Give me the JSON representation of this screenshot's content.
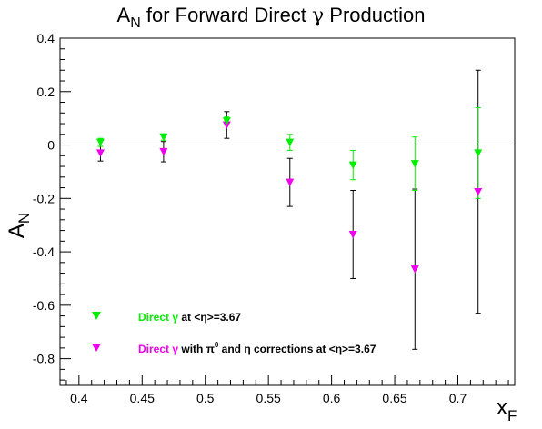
{
  "chart_data": {
    "type": "scatter",
    "title": {
      "prefix": "A",
      "subscript": "N",
      "rest_before_gamma": " for Forward Direct ",
      "gamma": "γ",
      "rest_after_gamma": " Production"
    },
    "xlabel": {
      "main": "x",
      "sub": "F"
    },
    "ylabel": {
      "main": "A",
      "sub": "N"
    },
    "xlim": [
      0.385,
      0.745
    ],
    "ylim": [
      -0.9,
      0.4
    ],
    "x_ticks": [
      0.4,
      0.45,
      0.5,
      0.55,
      0.6,
      0.65,
      0.7
    ],
    "x_tick_labels": [
      "0.4",
      "0.45",
      "0.5",
      "0.55",
      "0.6",
      "0.65",
      "0.7"
    ],
    "y_ticks": [
      0.4,
      0.2,
      0,
      -0.2,
      -0.4,
      -0.6,
      -0.8
    ],
    "y_tick_labels": [
      "0.4",
      "0.2",
      "0",
      "-0.2",
      "-0.4",
      "-0.6",
      "-0.8"
    ],
    "zero_line": true,
    "series": [
      {
        "id": "direct",
        "color": "#00ee00",
        "marker": "down-triangle",
        "error_bar_color": "#00ee00",
        "points": [
          {
            "x": 0.417,
            "y": 0.01,
            "err": 0.015
          },
          {
            "x": 0.467,
            "y": 0.03,
            "err": 0.012
          },
          {
            "x": 0.517,
            "y": 0.09,
            "err": 0.015
          },
          {
            "x": 0.567,
            "y": 0.01,
            "err": 0.03
          },
          {
            "x": 0.617,
            "y": -0.075,
            "err": 0.055
          },
          {
            "x": 0.666,
            "y": -0.07,
            "err": 0.1
          },
          {
            "x": 0.716,
            "y": -0.03,
            "err": 0.17
          }
        ]
      },
      {
        "id": "corrected",
        "color": "#ee00ee",
        "marker": "down-triangle",
        "error_bar_color": "#000000",
        "points": [
          {
            "x": 0.417,
            "y": -0.03,
            "err": 0.03
          },
          {
            "x": 0.467,
            "y": -0.025,
            "err": 0.038
          },
          {
            "x": 0.517,
            "y": 0.075,
            "err": 0.05
          },
          {
            "x": 0.567,
            "y": -0.14,
            "err": 0.09
          },
          {
            "x": 0.617,
            "y": -0.335,
            "err": 0.165
          },
          {
            "x": 0.666,
            "y": -0.465,
            "err": 0.3
          },
          {
            "x": 0.716,
            "y": -0.175,
            "err": 0.455
          }
        ]
      }
    ],
    "legend": {
      "placement": "bottom-left",
      "entries": [
        {
          "series": "direct",
          "color": "#00ee00",
          "label_colored": "Direct γ",
          "label_black": " at <η>=3.67"
        },
        {
          "series": "corrected",
          "color": "#ee00ee",
          "label_colored": "Direct γ",
          "label_black_1": " with π",
          "label_sup": "0",
          "label_black_2": " and η corrections at <η>=3.67"
        }
      ]
    }
  }
}
